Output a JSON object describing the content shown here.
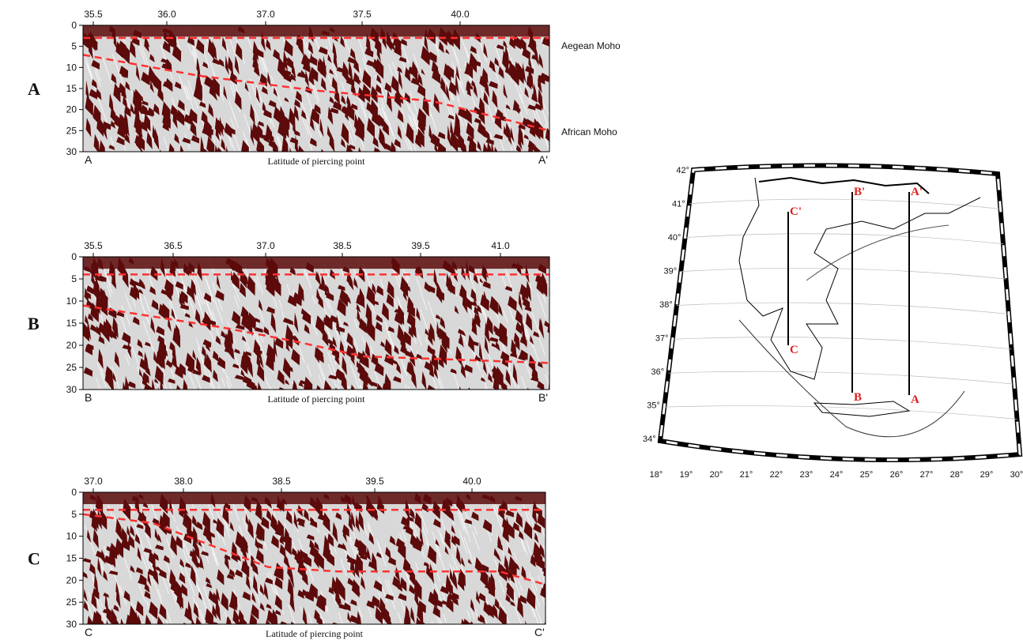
{
  "panels": [
    {
      "label": "A",
      "top_ticks": [
        "35.5",
        "36.0",
        "37.0",
        "37.5",
        "40.0"
      ],
      "depth_ticks": [
        "0",
        "5",
        "10",
        "15",
        "20",
        "25",
        "30"
      ],
      "start": "A",
      "end": "A'",
      "xlabel": "Latitude of piercing point",
      "annotations": [
        "Aegean Moho",
        "African Moho"
      ]
    },
    {
      "label": "B",
      "top_ticks": [
        "35.5",
        "36.5",
        "37.0",
        "38.5",
        "39.5",
        "41.0"
      ],
      "depth_ticks": [
        "0",
        "5",
        "10",
        "15",
        "20",
        "25",
        "30"
      ],
      "start": "B",
      "end": "B'",
      "xlabel": "Latitude of piercing point"
    },
    {
      "label": "C",
      "top_ticks": [
        "37.0",
        "38.0",
        "38.5",
        "39.5",
        "40.0"
      ],
      "depth_ticks": [
        "0",
        "5",
        "10",
        "15",
        "20",
        "25",
        "30"
      ],
      "start": "C",
      "end": "C'",
      "xlabel": "Latitude of piercing point"
    }
  ],
  "map": {
    "lat_labels": [
      "42°",
      "41°",
      "40°",
      "39°",
      "38°",
      "37°",
      "36°",
      "35°",
      "34°"
    ],
    "lon_labels": [
      "18°",
      "19°",
      "20°",
      "21°",
      "22°",
      "23°",
      "24°",
      "25°",
      "26°",
      "27°",
      "28°",
      "29°",
      "30°"
    ],
    "profiles": [
      {
        "start": "A",
        "end": "A'"
      },
      {
        "start": "B",
        "end": "B'"
      },
      {
        "start": "C",
        "end": "C'"
      }
    ]
  }
}
